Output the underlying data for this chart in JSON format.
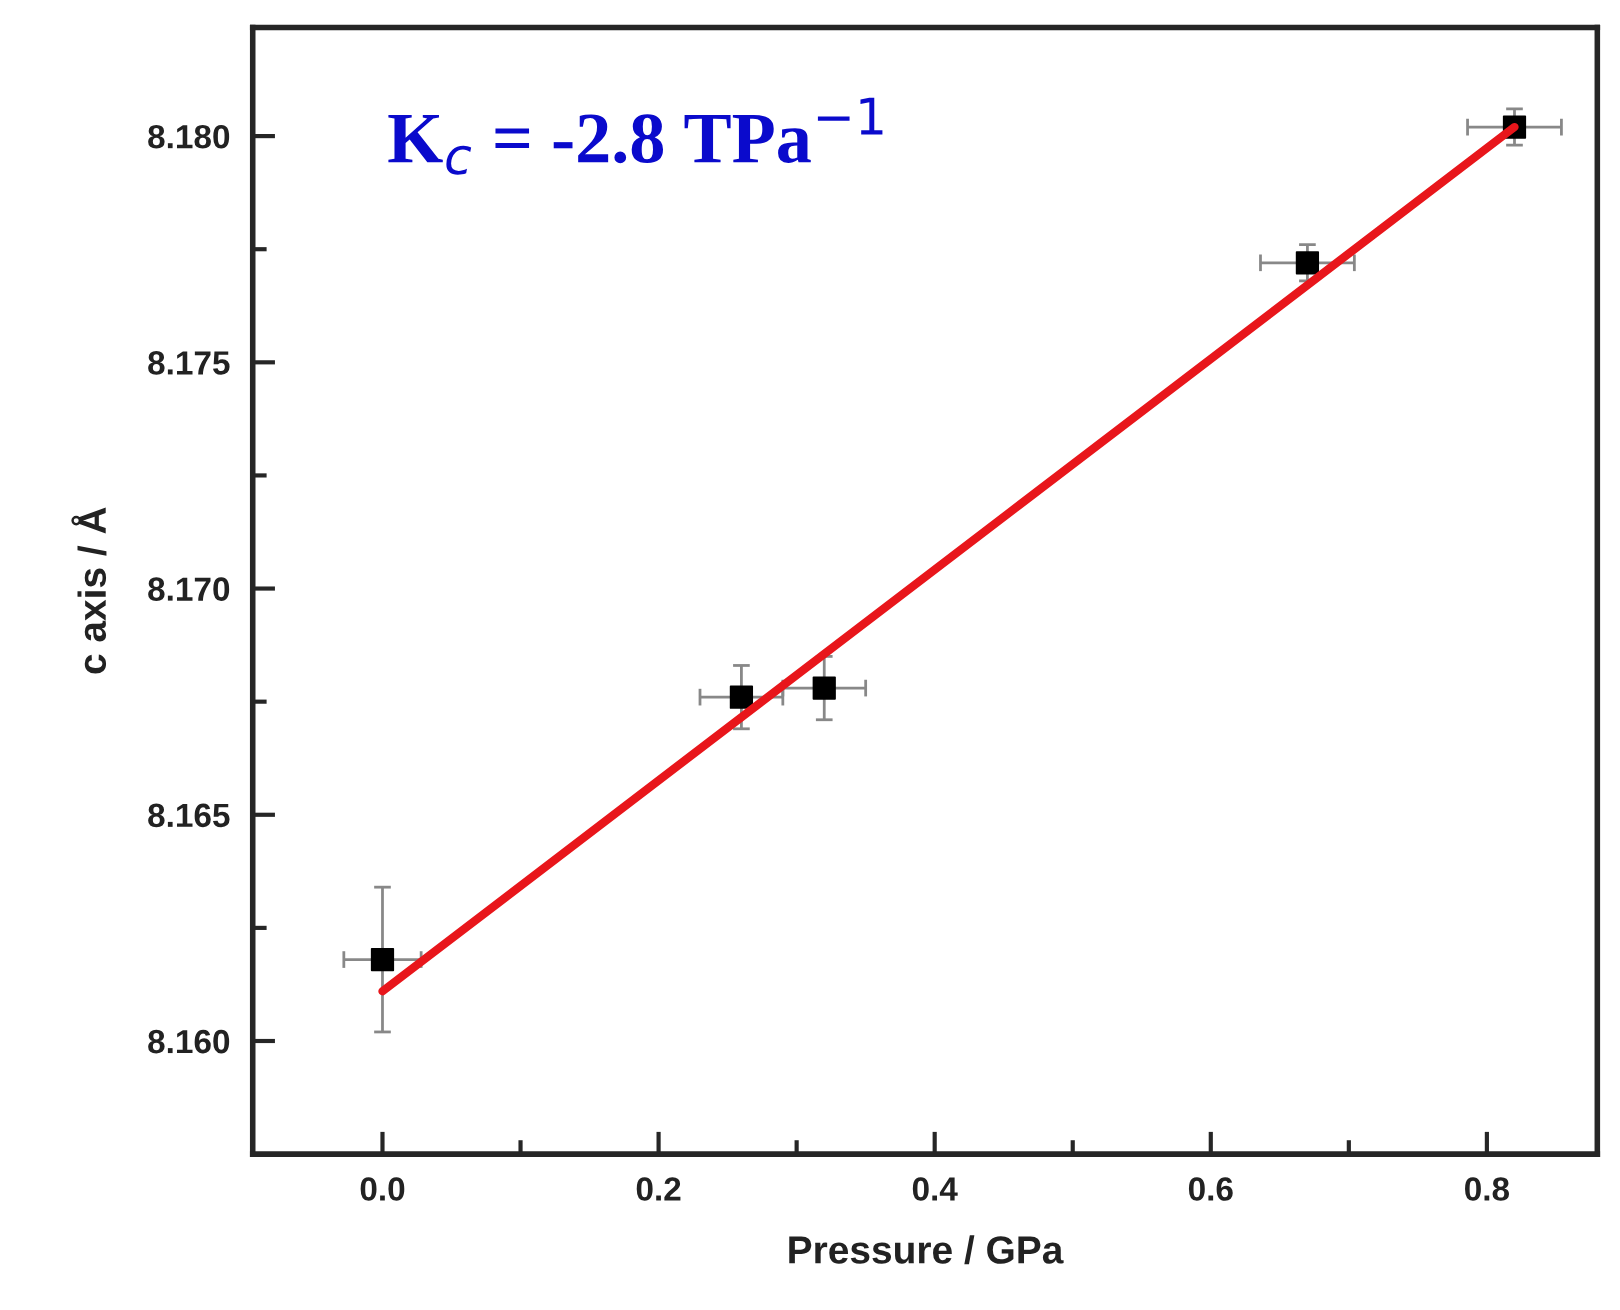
{
  "chart_data": {
    "type": "scatter",
    "xlabel": "Pressure / GPa",
    "ylabel": "c axis / Å",
    "annotations": [
      "K$_{c}$ = -2.8 TPa$^{−1}$"
    ],
    "series": [
      {
        "color": "#000000",
        "marker": "square",
        "x": [
          0,
          0.26,
          0.32,
          0.67,
          0.82
        ],
        "values": [
          8.1618,
          8.1676,
          8.1678,
          8.1772,
          8.1802
        ],
        "errors": [
          0.0016,
          0.0007,
          0.0007,
          0.0004,
          0.0004
        ],
        "xerrors": [
          0.028,
          0.03,
          0.03,
          0.034,
          0.034
        ]
      },
      {
        "type": "line",
        "color": "#e8161b",
        "line_style": "solid",
        "marker": "none",
        "x": [
          0,
          0.82
        ],
        "values": [
          8.1611,
          8.1802
        ]
      }
    ],
    "xlim": [
      -0.094,
      0.88
    ],
    "ylim": [
      8.1575,
      8.1824
    ],
    "xticks": [
      {
        "value": 0,
        "label": "0.0"
      },
      {
        "value": 0.2,
        "label": "0.2"
      },
      {
        "value": 0.4,
        "label": "0.4"
      },
      {
        "value": 0.6,
        "label": "0.6"
      },
      {
        "value": 0.8,
        "label": "0.8"
      }
    ],
    "yticks": [
      {
        "value": 8.16,
        "label": "8.160"
      },
      {
        "value": 8.165,
        "label": "8.165"
      },
      {
        "value": 8.17,
        "label": "8.170"
      },
      {
        "value": 8.175,
        "label": "8.175"
      },
      {
        "value": 8.18,
        "label": "8.180"
      }
    ],
    "grid": false,
    "legend": false
  }
}
